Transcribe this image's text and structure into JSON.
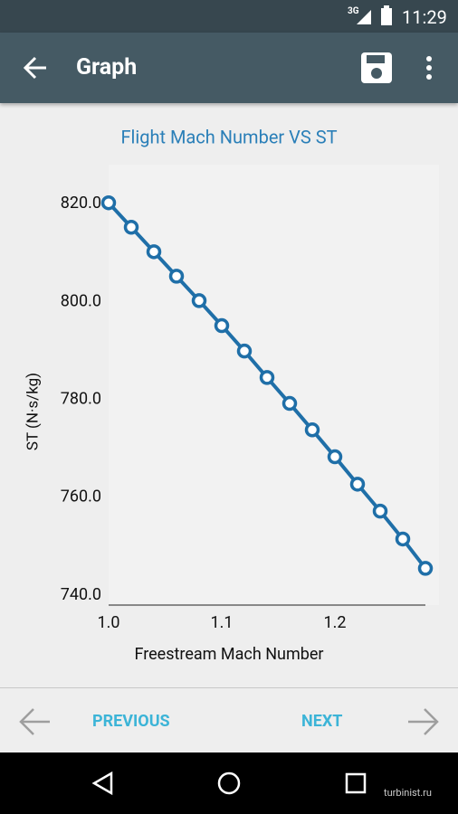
{
  "status_bar": {
    "network": "3G",
    "time": "11:29"
  },
  "app_bar": {
    "title": "Graph"
  },
  "chart_data": {
    "type": "line",
    "title": "Flight Mach Number VS ST",
    "x_label": "Freestream Mach Number",
    "y_label": "ST (N·s/kg)",
    "x": [
      1.0,
      1.02,
      1.04,
      1.06,
      1.08,
      1.1,
      1.12,
      1.14,
      1.16,
      1.18,
      1.2,
      1.22,
      1.24,
      1.26,
      1.28
    ],
    "series": [
      {
        "color": "#1f6fa8",
        "values": [
          820.2,
          815.2,
          810.2,
          805.2,
          800.2,
          795.1,
          789.9,
          784.5,
          779.2,
          773.8,
          768.3,
          762.7,
          757.2,
          751.5,
          745.5
        ]
      }
    ],
    "xlim": [
      1.0,
      1.28
    ],
    "ylim": [
      738,
      828
    ],
    "xticks": [
      {
        "value": 1,
        "label": "1.0"
      },
      1.1,
      1.2
    ],
    "yticks": [
      {
        "value": 740,
        "label": "740.0"
      },
      {
        "value": 760,
        "label": "760.0"
      },
      {
        "value": 780,
        "label": "780.0"
      },
      {
        "value": 800,
        "label": "800.0"
      },
      {
        "value": 820,
        "label": "820.0"
      }
    ],
    "grid": false
  },
  "nav": {
    "previous": "PREVIOUS",
    "next": "NEXT"
  },
  "watermark": "turbinist.ru"
}
